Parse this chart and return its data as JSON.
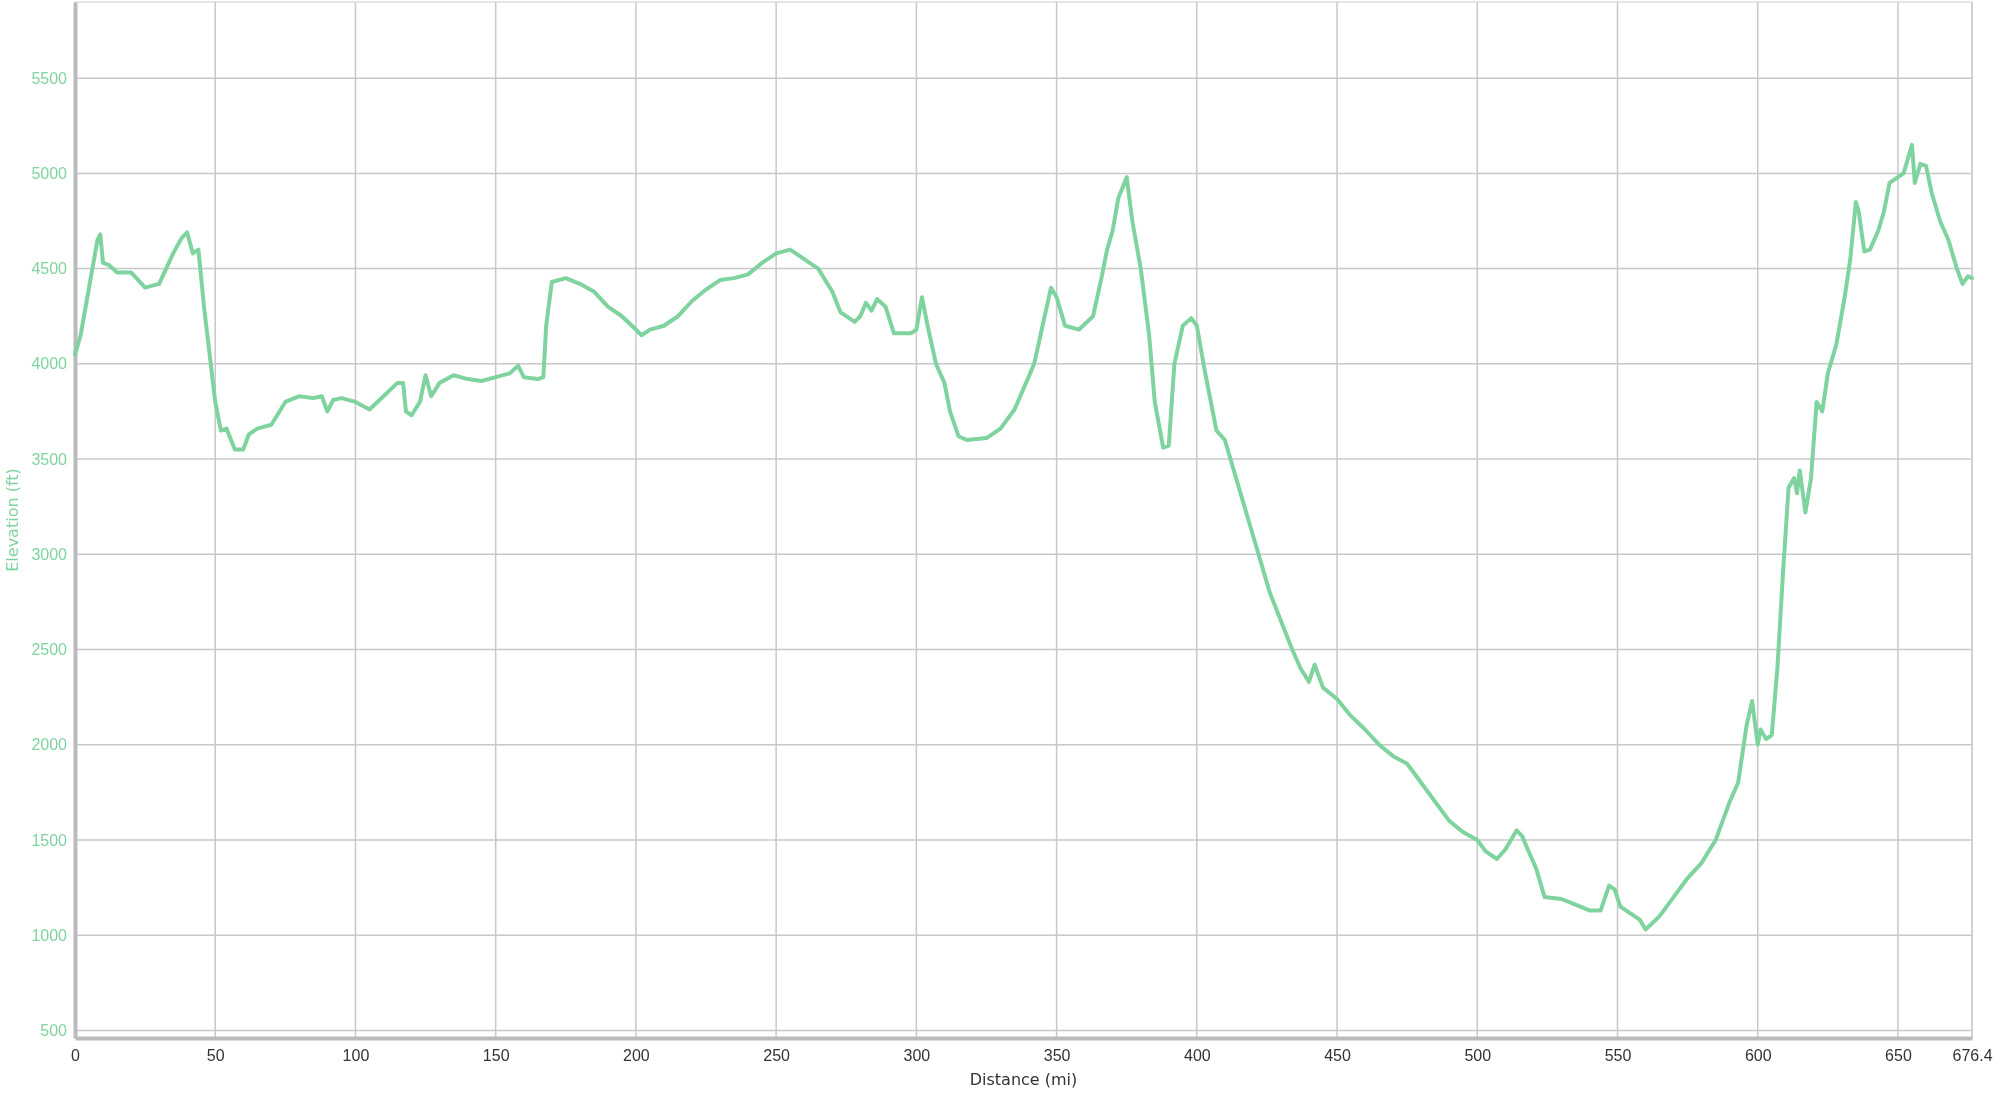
{
  "chart_data": {
    "type": "line",
    "xlabel": "Distance (mi)",
    "ylabel": "Elevation (ft)",
    "xlim": [
      0,
      676.4
    ],
    "ylim": [
      460,
      5900
    ],
    "xticks": [
      0,
      50,
      100,
      150,
      200,
      250,
      300,
      350,
      400,
      450,
      500,
      550,
      600,
      650,
      676.4
    ],
    "yticks": [
      500,
      1000,
      1500,
      2000,
      2500,
      3000,
      3500,
      4000,
      4500,
      5000,
      5500
    ],
    "grid": true,
    "marker": "none",
    "line_style": "solid",
    "x": [
      0,
      2,
      5,
      8,
      9,
      10,
      12,
      15,
      20,
      25,
      30,
      35,
      38,
      40,
      42,
      44,
      46,
      48,
      50,
      52,
      54,
      57,
      60,
      62,
      65,
      70,
      75,
      80,
      85,
      88,
      90,
      92,
      95,
      100,
      105,
      110,
      115,
      117,
      118,
      120,
      123,
      125,
      127,
      130,
      135,
      140,
      145,
      150,
      155,
      158,
      160,
      165,
      167,
      168,
      170,
      175,
      180,
      185,
      190,
      195,
      200,
      202,
      205,
      210,
      215,
      220,
      225,
      230,
      235,
      240,
      245,
      250,
      255,
      260,
      265,
      270,
      273,
      278,
      280,
      282,
      284,
      286,
      289,
      292,
      298,
      300,
      302,
      304,
      307,
      310,
      312,
      315,
      318,
      325,
      330,
      335,
      340,
      342,
      345,
      348,
      350,
      353,
      358,
      363,
      366,
      368,
      370,
      372,
      375,
      377,
      380,
      383,
      385,
      388,
      390,
      392,
      395,
      398,
      400,
      403,
      405,
      407,
      410,
      412,
      414,
      418,
      422,
      426,
      430,
      434,
      437,
      440,
      442,
      445,
      450,
      455,
      460,
      465,
      470,
      475,
      480,
      485,
      490,
      495,
      500,
      503,
      507,
      510,
      514,
      516,
      518,
      521,
      524,
      530,
      535,
      540,
      544,
      547,
      549,
      551,
      555,
      558,
      560,
      565,
      570,
      575,
      580,
      585,
      590,
      593,
      596,
      598,
      600,
      601,
      603,
      605,
      607,
      609,
      611,
      613,
      614,
      615,
      617,
      619,
      621,
      623,
      625,
      628,
      631,
      633,
      635,
      636,
      638,
      640,
      643,
      645,
      647,
      650,
      652,
      654,
      655,
      656,
      658,
      660,
      662,
      665,
      668,
      671,
      673,
      675,
      676.4
    ],
    "series": [
      {
        "color": "#7fd39f",
        "values": [
          4050,
          4150,
          4400,
          4650,
          4680,
          4530,
          4520,
          4480,
          4480,
          4400,
          4420,
          4580,
          4660,
          4690,
          4580,
          4600,
          4300,
          4050,
          3800,
          3650,
          3660,
          3550,
          3550,
          3630,
          3660,
          3680,
          3800,
          3830,
          3820,
          3830,
          3750,
          3810,
          3820,
          3800,
          3760,
          3830,
          3900,
          3900,
          3750,
          3730,
          3800,
          3940,
          3830,
          3900,
          3940,
          3920,
          3910,
          3930,
          3950,
          3990,
          3930,
          3920,
          3930,
          4200,
          4430,
          4450,
          4420,
          4380,
          4300,
          4250,
          4180,
          4150,
          4180,
          4200,
          4250,
          4330,
          4390,
          4440,
          4450,
          4470,
          4530,
          4580,
          4600,
          4550,
          4500,
          4380,
          4270,
          4220,
          4250,
          4320,
          4280,
          4340,
          4300,
          4160,
          4160,
          4180,
          4350,
          4200,
          4000,
          3900,
          3750,
          3620,
          3600,
          3610,
          3660,
          3760,
          3930,
          4000,
          4200,
          4400,
          4350,
          4200,
          4180,
          4250,
          4450,
          4600,
          4700,
          4870,
          4980,
          4750,
          4500,
          4150,
          3800,
          3560,
          3570,
          4000,
          4200,
          4240,
          4200,
          3950,
          3800,
          3650,
          3600,
          3500,
          3400,
          3200,
          3000,
          2800,
          2650,
          2500,
          2400,
          2330,
          2420,
          2300,
          2240,
          2150,
          2080,
          2000,
          1940,
          1900,
          1800,
          1700,
          1600,
          1540,
          1500,
          1440,
          1400,
          1450,
          1550,
          1520,
          1450,
          1350,
          1200,
          1190,
          1160,
          1130,
          1130,
          1260,
          1240,
          1150,
          1110,
          1080,
          1030,
          1100,
          1200,
          1300,
          1380,
          1500,
          1700,
          1800,
          2100,
          2230,
          2000,
          2080,
          2030,
          2050,
          2400,
          2900,
          3350,
          3400,
          3320,
          3440,
          3220,
          3400,
          3800,
          3750,
          3950,
          4100,
          4350,
          4550,
          4850,
          4800,
          4590,
          4600,
          4700,
          4800,
          4950,
          4980,
          5000,
          5100,
          5150,
          4950,
          5050,
          5040,
          4900,
          4750,
          4650,
          4500,
          4420,
          4460,
          4450
        ]
      }
    ]
  }
}
